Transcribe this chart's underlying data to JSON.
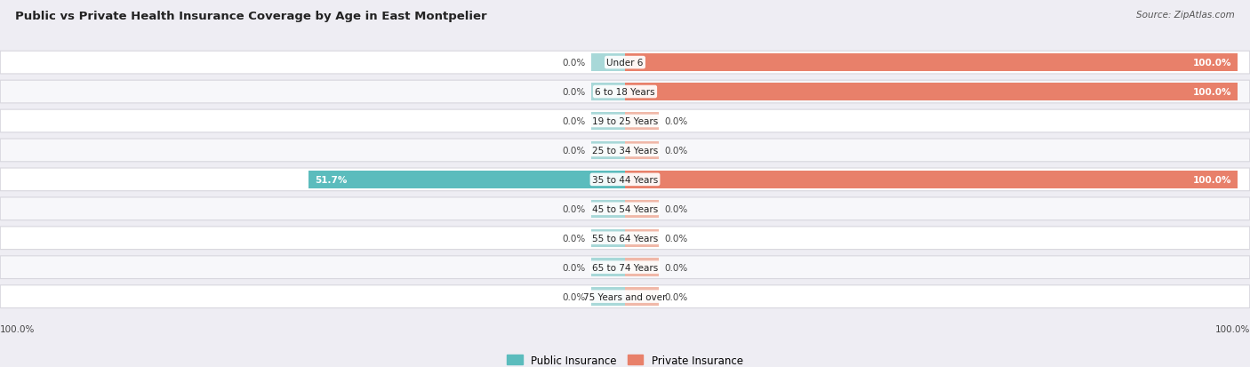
{
  "title": "Public vs Private Health Insurance Coverage by Age in East Montpelier",
  "source": "Source: ZipAtlas.com",
  "categories": [
    "Under 6",
    "6 to 18 Years",
    "19 to 25 Years",
    "25 to 34 Years",
    "35 to 44 Years",
    "45 to 54 Years",
    "55 to 64 Years",
    "65 to 74 Years",
    "75 Years and over"
  ],
  "public_values": [
    0.0,
    0.0,
    0.0,
    0.0,
    51.7,
    0.0,
    0.0,
    0.0,
    0.0
  ],
  "private_values": [
    100.0,
    100.0,
    0.0,
    0.0,
    100.0,
    0.0,
    0.0,
    0.0,
    0.0
  ],
  "public_color": "#5bbcbd",
  "private_color": "#e8806a",
  "public_color_light": "#a8d8d8",
  "private_color_light": "#f0b8a8",
  "public_label": "Public Insurance",
  "private_label": "Private Insurance",
  "bg_color": "#eeedf3",
  "row_color_odd": "#f7f7fa",
  "row_color_even": "#ffffff",
  "title_fontsize": 9.5,
  "source_fontsize": 7.5,
  "axis_max": 100.0,
  "bar_height": 0.62,
  "stub_size": 5.5,
  "label_fontsize": 7.5,
  "cat_fontsize": 7.5
}
